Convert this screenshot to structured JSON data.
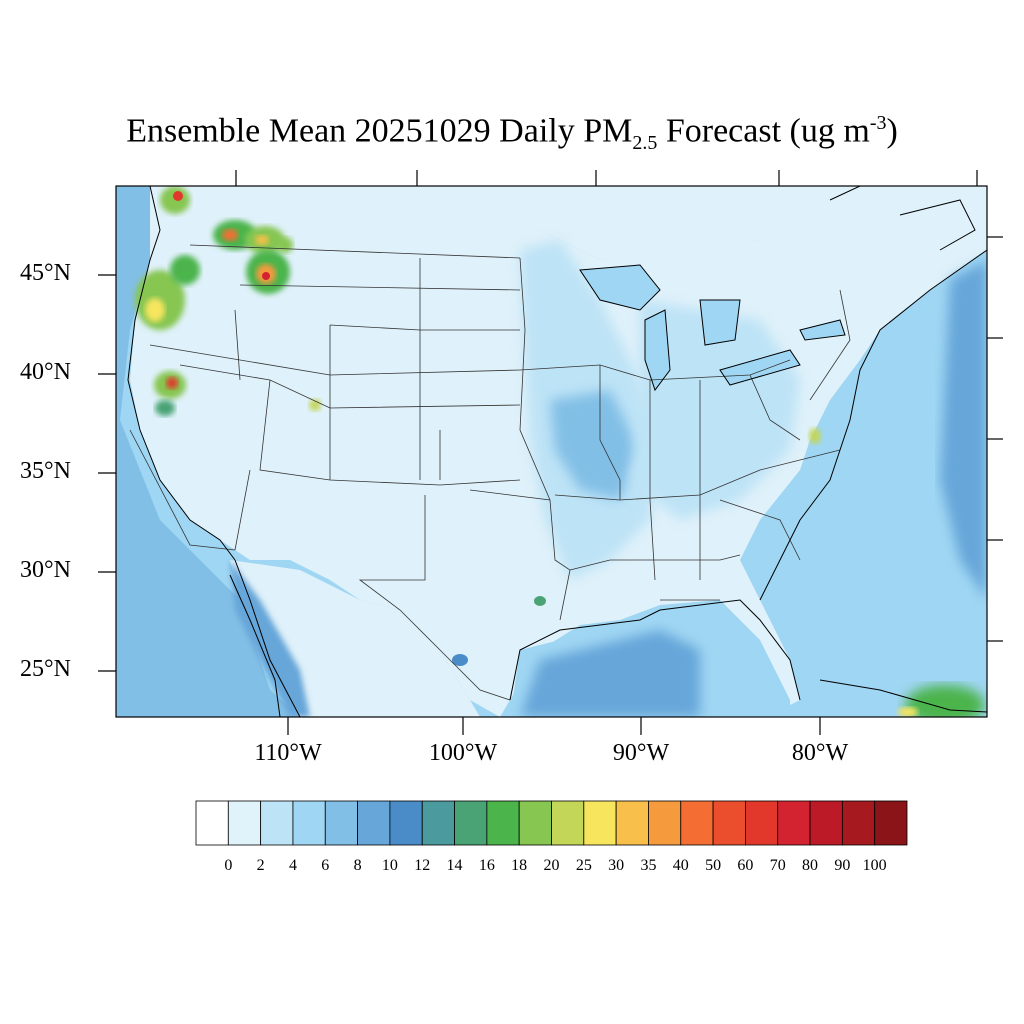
{
  "title": {
    "main": "Ensemble Mean 20251029 Daily PM",
    "sub": "2.5",
    "rest": " Forecast (ug m",
    "sup": "-3",
    "close": ")"
  },
  "lat_labels": [
    "45°N",
    "40°N",
    "35°N",
    "30°N",
    "25°N"
  ],
  "lon_labels": [
    "110°W",
    "100°W",
    "90°W",
    "80°W"
  ],
  "colorbar": {
    "labels": [
      "0",
      "2",
      "4",
      "6",
      "8",
      "10",
      "12",
      "14",
      "16",
      "18",
      "20",
      "25",
      "30",
      "35",
      "40",
      "50",
      "60",
      "70",
      "80",
      "90",
      "100"
    ],
    "colors": [
      "#ffffff",
      "#e0f3fb",
      "#bde3f6",
      "#9fd6f3",
      "#82bfe6",
      "#66a6d9",
      "#4a8cc8",
      "#4a9a9e",
      "#49a375",
      "#4bb44b",
      "#86c651",
      "#c3d658",
      "#f7e55e",
      "#f8bf4a",
      "#f69a3e",
      "#f46d32",
      "#ea4e2d",
      "#e1382b",
      "#d42330",
      "#bb1a26",
      "#a5191f",
      "#8a1418"
    ]
  },
  "colors": {
    "background_land": "#dff1fa",
    "ocean": "#9dd3f0",
    "ocean_deep": "#66a6d9"
  }
}
